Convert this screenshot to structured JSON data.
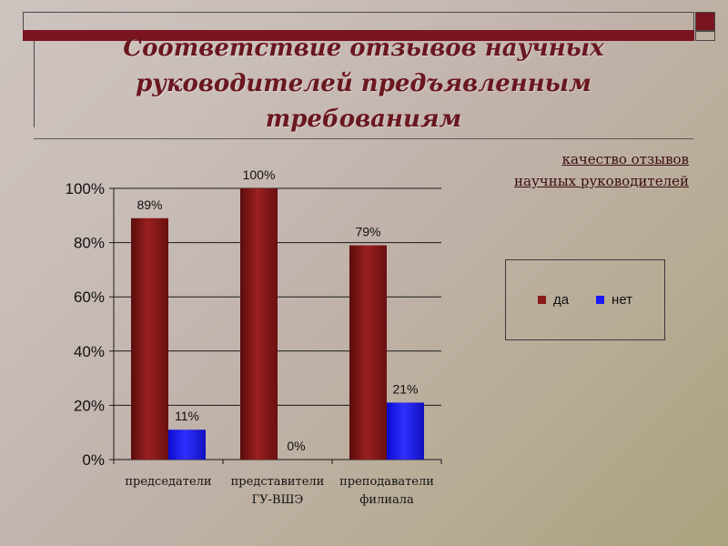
{
  "slide": {
    "title_line1": "Соответствие отзывов научных",
    "title_line2": "руководителей предъявленным требованиям",
    "subtitle_line1": "качество отзывов",
    "subtitle_line2": "научных руководителей"
  },
  "colors": {
    "title": "#6a1720",
    "accent_bar": "#7a1420",
    "series_yes": "#8b1a1a",
    "series_no": "#1a1af0"
  },
  "chart_data": {
    "type": "bar",
    "categories": [
      [
        "председатели"
      ],
      [
        "представители",
        "ГУ-ВШЭ"
      ],
      [
        "преподаватели",
        "филиала"
      ]
    ],
    "series": [
      {
        "name": "да",
        "values": [
          89,
          100,
          79
        ],
        "labels": [
          "89%",
          "100%",
          "79%"
        ],
        "color": "#8b1a1a"
      },
      {
        "name": "нет",
        "values": [
          11,
          0,
          21
        ],
        "labels": [
          "11%",
          "0%",
          "21%"
        ],
        "color": "#1a1af0"
      }
    ],
    "ylim": [
      0,
      100
    ],
    "yticks": [
      0,
      20,
      40,
      60,
      80,
      100
    ],
    "ytick_labels": [
      "0%",
      "20%",
      "40%",
      "60%",
      "80%",
      "100%"
    ],
    "grid": true,
    "legend_placement": "right"
  }
}
